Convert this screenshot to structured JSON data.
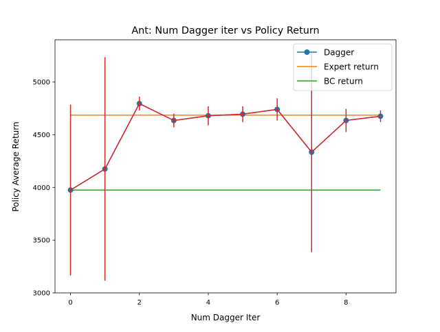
{
  "chart_data": {
    "type": "line",
    "title": "Ant: Num Dagger iter vs Policy Return",
    "xlabel": "Num Dagger Iter",
    "ylabel": "Policy Average Return",
    "xlim": [
      -0.45,
      9.45
    ],
    "ylim": [
      3000,
      5400
    ],
    "xticks": [
      0,
      2,
      4,
      6,
      8
    ],
    "yticks": [
      3000,
      3500,
      4000,
      4500,
      5000
    ],
    "grid": false,
    "legend_position": "top-right",
    "x": [
      0,
      1,
      2,
      3,
      4,
      5,
      6,
      7,
      8,
      9
    ],
    "series": [
      {
        "name": "Dagger",
        "kind": "line-marker-errorbar",
        "color": "#1f77b4",
        "error_color": "#d62728",
        "values": [
          3975,
          4175,
          4795,
          4635,
          4680,
          4695,
          4740,
          4335,
          4635,
          4675
        ],
        "error": [
          810,
          1060,
          65,
          65,
          90,
          75,
          105,
          950,
          110,
          55
        ]
      },
      {
        "name": "Expert return",
        "kind": "line",
        "color": "#ff7f0e",
        "values": [
          4685,
          4685,
          4685,
          4685,
          4685,
          4685,
          4685,
          4685,
          4685,
          4685
        ]
      },
      {
        "name": "BC return",
        "kind": "line",
        "color": "#2ca02c",
        "values": [
          3975,
          3975,
          3975,
          3975,
          3975,
          3975,
          3975,
          3975,
          3975,
          3975
        ]
      }
    ]
  }
}
